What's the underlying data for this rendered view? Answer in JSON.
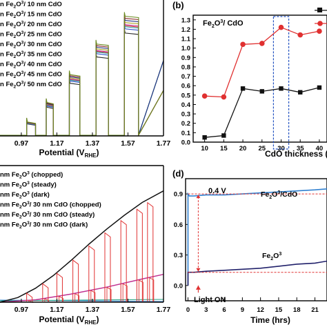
{
  "colors": {
    "axis": "#000000",
    "red": "#e03030",
    "black": "#111111",
    "box": "#2050c0",
    "blue_trace": "#3080d0",
    "navy_trace": "#20206a",
    "arrow": "#e03030"
  },
  "chart_data": [
    {
      "panel_id": "a",
      "type": "line",
      "title": "",
      "xlabel": "Potential (VRHE)",
      "xlabel_main": "Potential (V",
      "xlabel_sub": "RHE",
      "xlabel_close": ")",
      "ylabel": "",
      "xlim": [
        0.85,
        1.77
      ],
      "ylim": [
        0,
        1
      ],
      "x_ticks": [
        "0.97",
        "1.17",
        "1.37",
        "1.57",
        "1.77"
      ],
      "x_tick_values": [
        0.97,
        1.17,
        1.37,
        1.57,
        1.77
      ],
      "series": [
        {
          "name": "Fe2O3/ 10 nm CdO",
          "pre": "n Fe",
          "sub": "2",
          "mid": "O",
          "sup": "3",
          "post": "/ 10 nm CdO",
          "color": "#2a2a2a"
        },
        {
          "name": "Fe2O3/ 15 nm CdO",
          "pre": "n Fe",
          "sub": "2",
          "mid": "O",
          "sup": "3",
          "post": "/ 15 nm CdO",
          "color": "#d83030"
        },
        {
          "name": "Fe2O3/ 20 nm CdO",
          "pre": "n Fe",
          "sub": "2",
          "mid": "O",
          "sup": "3",
          "post": "/ 20 nm CdO",
          "color": "#3050c8"
        },
        {
          "name": "Fe2O3/ 25 nm CdO",
          "pre": "n Fe",
          "sub": "2",
          "mid": "O",
          "sup": "3",
          "post": "/ 25 nm CdO",
          "color": "#2aa0a0"
        },
        {
          "name": "Fe2O3/ 30 nm CdO",
          "pre": "n Fe",
          "sub": "2",
          "mid": "O",
          "sup": "3",
          "post": "/ 30 nm CdO",
          "color": "#c03090"
        },
        {
          "name": "Fe2O3/ 35 nm CdO",
          "pre": "n Fe",
          "sub": "2",
          "mid": "O",
          "sup": "3",
          "post": "/ 35 nm CdO",
          "color": "#a8a020"
        },
        {
          "name": "Fe2O3/ 40 nm CdO",
          "pre": "n Fe",
          "sub": "2",
          "mid": "O",
          "sup": "3",
          "post": "/ 40 nm CdO",
          "color": "#203080"
        },
        {
          "name": "Fe2O3/ 45 nm CdO",
          "pre": "n Fe",
          "sub": "2",
          "mid": "O",
          "sup": "3",
          "post": "/ 45 nm CdO",
          "color": "#8a2a2a"
        },
        {
          "name": "Fe2O3/ 50 nm CdO",
          "pre": "n Fe",
          "sub": "2",
          "mid": "O",
          "sup": "3",
          "post": "/ 50 nm CdO",
          "color": "#6a8a20"
        }
      ],
      "light_on_intervals": [
        [
          1.0,
          1.05
        ],
        [
          1.11,
          1.15
        ],
        [
          1.24,
          1.3
        ],
        [
          1.39,
          1.46
        ],
        [
          1.55,
          1.63
        ]
      ],
      "light_on_levels": [
        0.0,
        0.1,
        0.24,
        0.44,
        0.66,
        0.86
      ]
    },
    {
      "panel_id": "b",
      "panel_label": "(b)",
      "type": "line",
      "title": "Fe2O3/ CdO",
      "title_pre": "Fe",
      "title_sub": "2",
      "title_mid": "O",
      "title_sup": "3",
      "title_post": "/ CdO",
      "xlabel": "CdO thickness (",
      "ylabel": "",
      "xlim": [
        7,
        42
      ],
      "ylim": [
        0,
        1.35
      ],
      "x_ticks": [
        10,
        15,
        20,
        25,
        30,
        35,
        40
      ],
      "y_ticks": [
        "0.0",
        "0.1",
        "0.2",
        "0.3",
        "0.4",
        "0.5",
        "0.6",
        "0.7",
        "0.8",
        "0.9",
        "1.0",
        "1.1",
        "1.2",
        "1.3"
      ],
      "y_tick_values": [
        0.0,
        0.1,
        0.2,
        0.3,
        0.4,
        0.5,
        0.6,
        0.7,
        0.8,
        0.9,
        1.0,
        1.1,
        1.2,
        1.3
      ],
      "x": [
        10,
        15,
        20,
        25,
        30,
        35,
        40
      ],
      "series": [
        {
          "marker": "square",
          "color": "#111111",
          "values": [
            0.05,
            0.07,
            0.57,
            0.54,
            0.57,
            0.53,
            0.58
          ]
        },
        {
          "marker": "circle",
          "color": "#e03030",
          "values": [
            0.49,
            0.48,
            1.04,
            1.05,
            1.22,
            1.14,
            1.18
          ]
        }
      ],
      "highlight_x": [
        28,
        32
      ]
    },
    {
      "panel_id": "c",
      "type": "line",
      "title": "",
      "xlabel": "Potential (VRHE)",
      "xlabel_main": "Potential (V",
      "xlabel_sub": "RHE",
      "xlabel_close": ")",
      "ylabel": "",
      "xlim": [
        0.85,
        1.77
      ],
      "ylim": [
        0,
        1
      ],
      "x_ticks": [
        "0.97",
        "1.17",
        "1.37",
        "1.57",
        "1.77"
      ],
      "x_tick_values": [
        0.97,
        1.17,
        1.37,
        1.57,
        1.77
      ],
      "legend": [
        {
          "pre": "nm Fe",
          "sub": "2",
          "mid": "O",
          "sup": "3",
          "post": " (chopped)",
          "color": "#e03030"
        },
        {
          "pre": "nm Fe",
          "sub": "2",
          "mid": "O",
          "sup": "3",
          "post": " (steady)",
          "color": "#c03090"
        },
        {
          "pre": "nm Fe",
          "sub": "2",
          "mid": "O",
          "sup": "3",
          "post": " (dark)",
          "color": "#20a080"
        },
        {
          "pre": "nm Fe",
          "sub": "2",
          "mid": "O",
          "sup": "3",
          "post": "/ 30 nm CdO (chopped)",
          "color": "#e03030"
        },
        {
          "pre": "nm Fe",
          "sub": "2",
          "mid": "O",
          "sup": "3",
          "post": "/ 30 nm CdO (steady)",
          "color": "#111111"
        },
        {
          "pre": "nm Fe",
          "sub": "2",
          "mid": "O",
          "sup": "3",
          "post": "/ 30 nm CdO (dark)",
          "color": "#3080d0"
        }
      ],
      "steady_cdo": {
        "x": [
          0.85,
          0.95,
          1.05,
          1.15,
          1.25,
          1.35,
          1.45,
          1.55,
          1.65,
          1.77
        ],
        "y": [
          0.0,
          0.04,
          0.12,
          0.23,
          0.36,
          0.5,
          0.63,
          0.75,
          0.86,
          0.96
        ]
      },
      "steady_fe": {
        "x": [
          0.85,
          1.05,
          1.25,
          1.45,
          1.65,
          1.77
        ],
        "y": [
          0.0,
          0.02,
          0.07,
          0.13,
          0.2,
          0.24
        ]
      },
      "chop_times": [
        1.0,
        1.09,
        1.17,
        1.26,
        1.35,
        1.44,
        1.53,
        1.62,
        1.68
      ]
    },
    {
      "panel_id": "d",
      "panel_label": "(d)",
      "type": "line",
      "title": "0.4 V",
      "xlabel": "Time (hrs)",
      "ylabel": "",
      "xlim": [
        -0.4,
        23
      ],
      "ylim": [
        -0.15,
        1.05
      ],
      "x_ticks": [
        0,
        3,
        6,
        9,
        12,
        15,
        18,
        21
      ],
      "y_ticks": [
        "0.0",
        "0.3",
        "0.6",
        "0.9"
      ],
      "y_tick_values": [
        0.0,
        0.3,
        0.6,
        0.9
      ],
      "series": [
        {
          "name": "Fe2O3/CdO",
          "label_pre": "Fe",
          "label_sub": "2",
          "label_mid": "O",
          "label_sup": "3",
          "label_post": "/CdO",
          "color": "#3080d0",
          "x": [
            0,
            0.2,
            1,
            3,
            6,
            9,
            12,
            15,
            18,
            21,
            23
          ],
          "values": [
            0.9,
            0.88,
            0.88,
            0.89,
            0.89,
            0.9,
            0.91,
            0.92,
            0.93,
            0.94,
            0.95
          ]
        },
        {
          "name": "Fe2O3",
          "label_pre": "Fe",
          "label_sub": "2",
          "label_mid": "O",
          "label_sup": "3",
          "label_post": "",
          "color": "#20206a",
          "x": [
            0,
            0.2,
            1,
            3,
            6,
            9,
            12,
            15,
            18,
            21,
            23
          ],
          "values": [
            0.13,
            0.13,
            0.13,
            0.14,
            0.15,
            0.16,
            0.17,
            0.19,
            0.21,
            0.22,
            0.24
          ]
        }
      ],
      "annotation": "Light ON"
    }
  ]
}
